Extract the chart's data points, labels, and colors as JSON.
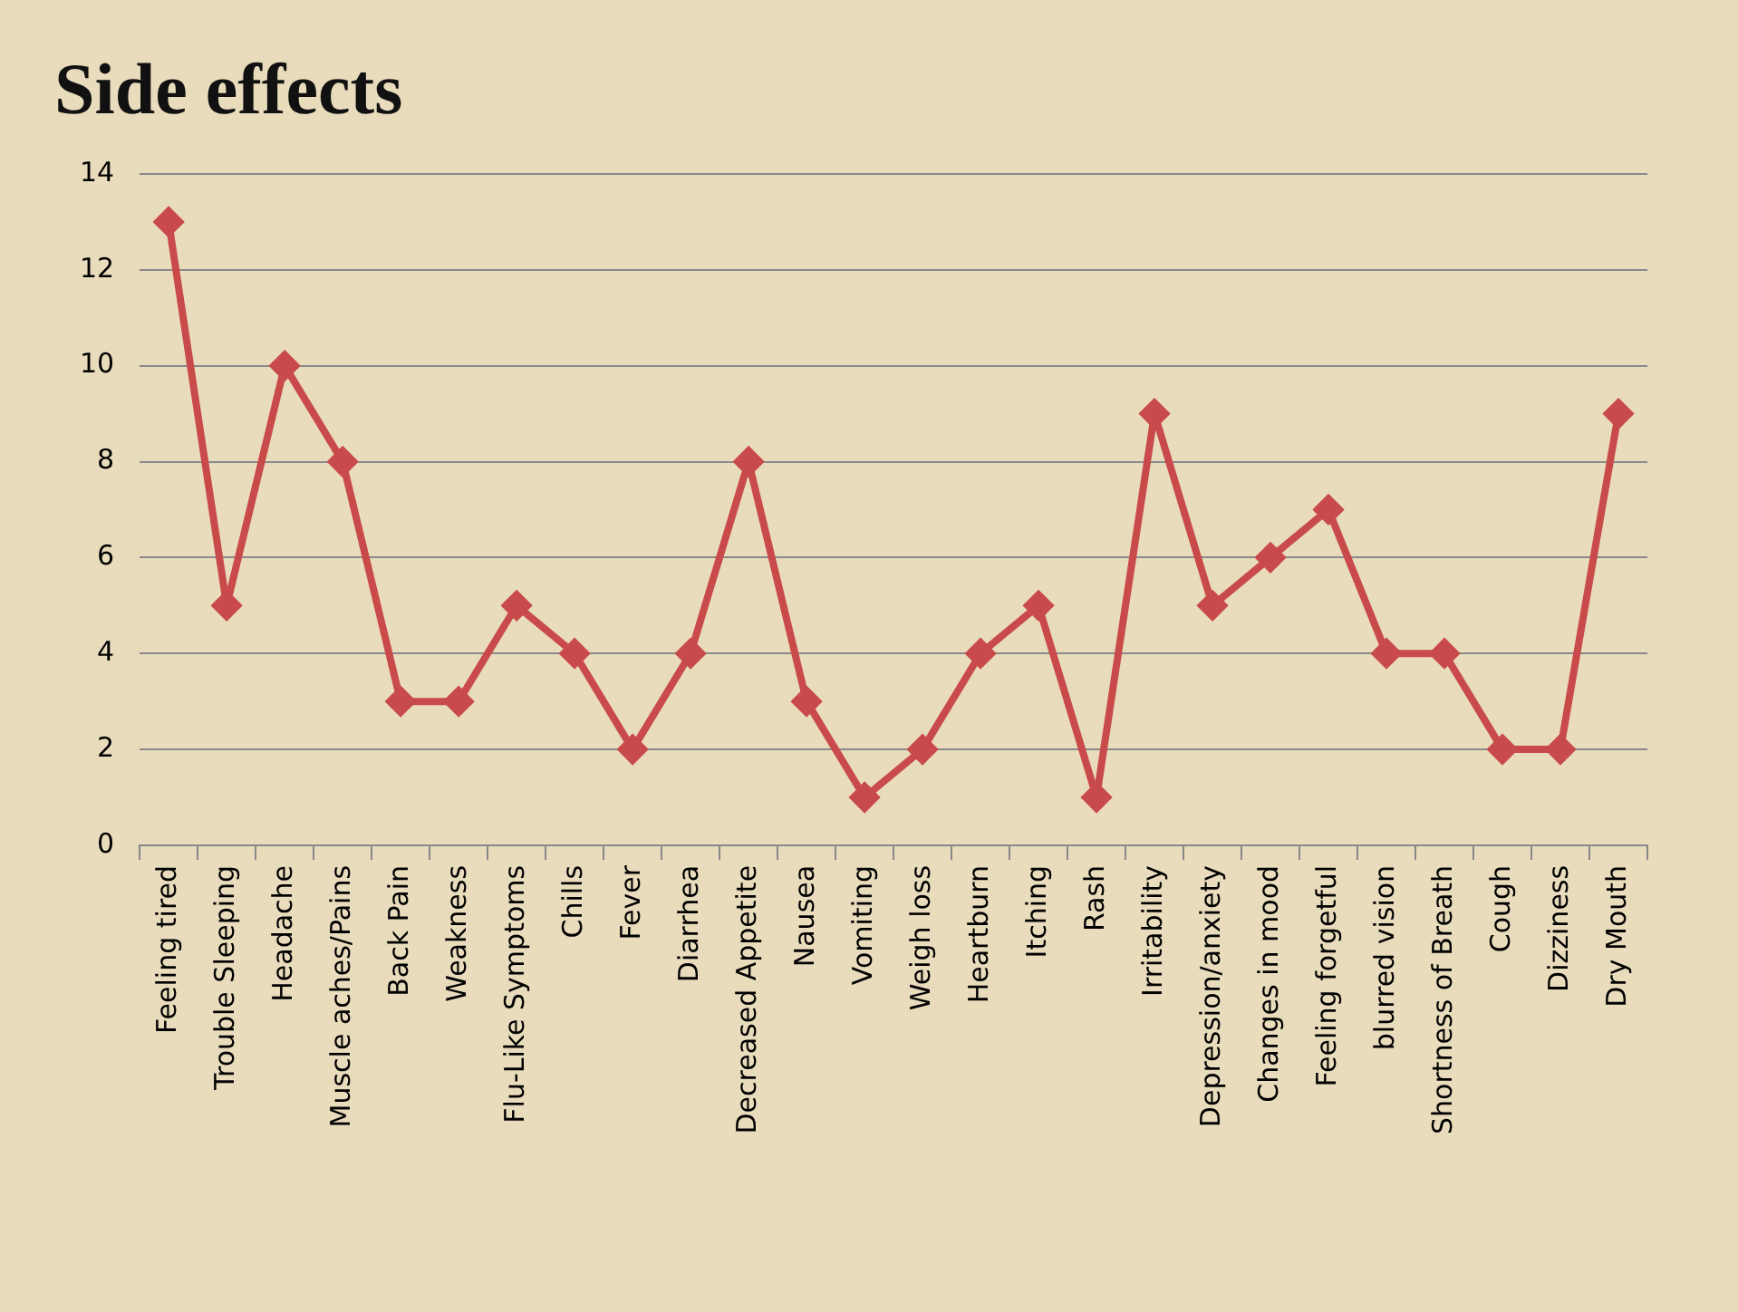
{
  "chart_data": {
    "type": "line",
    "title": "Side effects",
    "categories": [
      "Feeling tired",
      "Trouble Sleeping",
      "Headache",
      "Muscle aches/Pains",
      "Back Pain",
      "Weakness",
      "Flu-Like Symptoms",
      "Chills",
      "Fever",
      "Diarrhea",
      "Decreased Appetite",
      "Nausea",
      "Vomiting",
      "Weigh loss",
      "Heartburn",
      "Itching",
      "Rash",
      "Irritability",
      "Depression/anxiety",
      "Changes in mood",
      "Feeling forgetful",
      "blurred vision",
      "Shortness of Breath",
      "Cough",
      "Dizziness",
      "Dry Mouth"
    ],
    "series": [
      {
        "color": "#c94a4a",
        "values": [
          13,
          5,
          10,
          8,
          3,
          3,
          5,
          4,
          2,
          4,
          8,
          3,
          1,
          2,
          4,
          5,
          1,
          9,
          5,
          6,
          7,
          4,
          4,
          2,
          2,
          9
        ]
      }
    ],
    "ylim": [
      0,
      14
    ],
    "yticks": [
      0,
      2,
      4,
      6,
      8,
      10,
      12,
      14
    ],
    "grid": "y",
    "legend": false,
    "marker": "diamond",
    "line_style": "solid"
  }
}
